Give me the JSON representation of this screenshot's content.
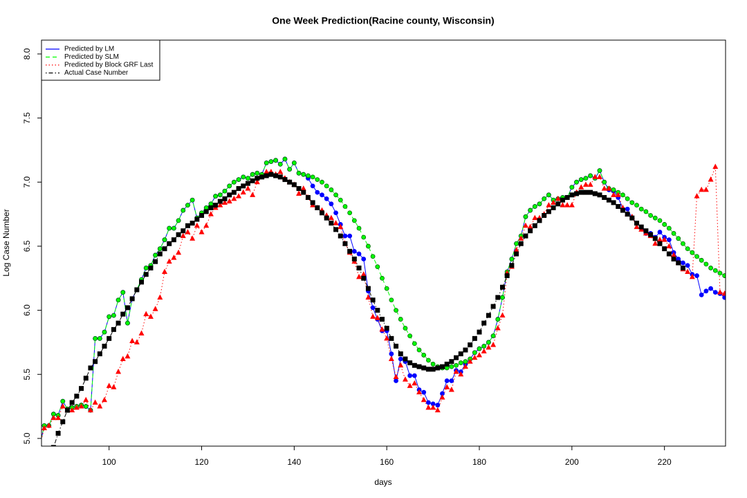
{
  "chart_data": {
    "type": "line",
    "title": "One Week Prediction(Racine county, Wisconsin)",
    "x_label": "days",
    "y_label": "Log Case Number",
    "xlim": [
      85.4,
      233.2
    ],
    "ylim": [
      4.94,
      8.108
    ],
    "xticks": [
      100,
      120,
      140,
      160,
      180,
      200,
      220
    ],
    "yticks": [
      {
        "value": 5,
        "label": "5.0"
      },
      {
        "value": 5.5,
        "label": "5.5"
      },
      {
        "value": 6,
        "label": "6.0"
      },
      {
        "value": 6.5,
        "label": "6.5"
      },
      {
        "value": 7,
        "label": "7.0"
      },
      {
        "value": 7.5,
        "label": "7.5"
      },
      {
        "value": 8,
        "label": "8.0"
      }
    ],
    "legend": "topleft",
    "x": [
      85,
      86,
      87,
      88,
      89,
      90,
      91,
      92,
      93,
      94,
      95,
      96,
      97,
      98,
      99,
      100,
      101,
      102,
      103,
      104,
      105,
      106,
      107,
      108,
      109,
      110,
      111,
      112,
      113,
      114,
      115,
      116,
      117,
      118,
      119,
      120,
      121,
      122,
      123,
      124,
      125,
      126,
      127,
      128,
      129,
      130,
      131,
      132,
      133,
      134,
      135,
      136,
      137,
      138,
      139,
      140,
      141,
      142,
      143,
      144,
      145,
      146,
      147,
      148,
      149,
      150,
      151,
      152,
      153,
      154,
      155,
      156,
      157,
      158,
      159,
      160,
      161,
      162,
      163,
      164,
      165,
      166,
      167,
      168,
      169,
      170,
      171,
      172,
      173,
      174,
      175,
      176,
      177,
      178,
      179,
      180,
      181,
      182,
      183,
      184,
      185,
      186,
      187,
      188,
      189,
      190,
      191,
      192,
      193,
      194,
      195,
      196,
      197,
      198,
      199,
      200,
      201,
      202,
      203,
      204,
      205,
      206,
      207,
      208,
      209,
      210,
      211,
      212,
      213,
      214,
      215,
      216,
      217,
      218,
      219,
      220,
      221,
      222,
      223,
      224,
      225,
      226,
      227,
      228,
      229,
      230,
      231,
      232,
      233
    ],
    "series": [
      {
        "name": "Predicted by LM",
        "color": "#0000ff",
        "dash": "solid",
        "marker": "circle",
        "values": [
          4.94,
          5.1,
          5.1,
          5.19,
          5.18,
          5.29,
          5.23,
          5.24,
          5.25,
          5.26,
          5.25,
          5.22,
          5.78,
          5.78,
          5.83,
          5.95,
          5.96,
          6.08,
          6.14,
          5.9,
          6.09,
          6.16,
          6.24,
          6.33,
          6.35,
          6.43,
          6.48,
          6.55,
          6.64,
          6.64,
          6.7,
          6.78,
          6.82,
          6.86,
          6.72,
          6.76,
          6.8,
          6.83,
          6.89,
          6.9,
          6.93,
          6.97,
          7.0,
          7.02,
          7.04,
          7.03,
          7.06,
          7.07,
          7.06,
          7.15,
          7.16,
          7.17,
          7.14,
          7.18,
          7.1,
          7.15,
          7.07,
          7.06,
          7.03,
          6.97,
          6.92,
          6.9,
          6.87,
          6.83,
          6.76,
          6.67,
          6.58,
          6.58,
          6.46,
          6.44,
          6.4,
          6.15,
          6.02,
          5.93,
          5.84,
          5.84,
          5.66,
          5.45,
          5.62,
          5.6,
          5.49,
          5.49,
          5.38,
          5.36,
          5.28,
          5.27,
          5.26,
          5.35,
          5.45,
          5.45,
          5.53,
          5.52,
          5.58,
          5.62,
          5.67,
          5.7,
          5.72,
          5.75,
          5.8,
          5.93,
          6.1,
          6.3,
          6.4,
          6.52,
          6.58,
          6.73,
          6.78,
          6.81,
          6.83,
          6.87,
          6.9,
          6.86,
          6.87,
          6.88,
          6.88,
          6.96,
          7.0,
          7.02,
          7.03,
          7.05,
          7.03,
          7.09,
          7.0,
          6.94,
          6.93,
          6.88,
          6.79,
          6.79,
          6.72,
          6.68,
          6.65,
          6.6,
          6.6,
          6.57,
          6.61,
          6.57,
          6.55,
          6.45,
          6.4,
          6.37,
          6.35,
          6.28,
          6.27,
          6.12,
          6.15,
          6.17,
          6.14,
          6.13,
          6.1
        ]
      },
      {
        "name": "Predicted by SLM",
        "color": "#00ff00",
        "dash": "dashed",
        "marker": "circle",
        "marker_edge": "#006400",
        "values": [
          4.94,
          5.1,
          5.1,
          5.19,
          5.18,
          5.29,
          5.23,
          5.24,
          5.25,
          5.26,
          5.25,
          5.22,
          5.78,
          5.78,
          5.83,
          5.95,
          5.96,
          6.08,
          6.14,
          5.9,
          6.09,
          6.16,
          6.24,
          6.33,
          6.35,
          6.43,
          6.48,
          6.55,
          6.64,
          6.64,
          6.7,
          6.78,
          6.82,
          6.86,
          6.72,
          6.76,
          6.8,
          6.83,
          6.89,
          6.9,
          6.93,
          6.97,
          7.0,
          7.02,
          7.04,
          7.03,
          7.06,
          7.07,
          7.06,
          7.15,
          7.16,
          7.17,
          7.14,
          7.18,
          7.1,
          7.15,
          7.07,
          7.06,
          7.05,
          7.04,
          7.02,
          7.0,
          6.97,
          6.94,
          6.9,
          6.86,
          6.81,
          6.76,
          6.7,
          6.64,
          6.57,
          6.5,
          6.42,
          6.34,
          6.25,
          6.17,
          6.08,
          6.0,
          5.93,
          5.86,
          5.8,
          5.74,
          5.69,
          5.65,
          5.61,
          5.58,
          5.56,
          5.55,
          5.55,
          5.56,
          5.57,
          5.59,
          5.6,
          5.62,
          5.67,
          5.7,
          5.72,
          5.75,
          5.8,
          5.93,
          6.1,
          6.3,
          6.4,
          6.52,
          6.58,
          6.73,
          6.78,
          6.81,
          6.83,
          6.87,
          6.9,
          6.86,
          6.87,
          6.88,
          6.88,
          6.96,
          7.0,
          7.02,
          7.03,
          7.05,
          7.03,
          7.09,
          7.0,
          6.95,
          6.94,
          6.92,
          6.9,
          6.87,
          6.84,
          6.82,
          6.79,
          6.77,
          6.74,
          6.72,
          6.7,
          6.67,
          6.64,
          6.6,
          6.56,
          6.52,
          6.48,
          6.45,
          6.42,
          6.39,
          6.36,
          6.33,
          6.31,
          6.29,
          6.27
        ]
      },
      {
        "name": "Predicted by Block GRF Last",
        "color": "#ff0000",
        "dash": "dotted",
        "marker": "triangle",
        "values": [
          4.94,
          5.08,
          5.1,
          5.16,
          5.16,
          5.25,
          5.22,
          5.22,
          5.24,
          5.25,
          5.3,
          5.22,
          5.28,
          5.25,
          5.3,
          5.41,
          5.4,
          5.52,
          5.62,
          5.64,
          5.76,
          5.75,
          5.82,
          5.97,
          5.95,
          6.01,
          6.1,
          6.3,
          6.38,
          6.41,
          6.45,
          6.58,
          6.61,
          6.56,
          6.66,
          6.61,
          6.66,
          6.75,
          6.8,
          6.82,
          6.84,
          6.85,
          6.87,
          6.89,
          6.92,
          6.95,
          6.9,
          7.0,
          7.04,
          7.08,
          7.08,
          7.06,
          7.08,
          7.03,
          7.0,
          6.98,
          6.91,
          6.95,
          6.88,
          6.82,
          6.8,
          6.78,
          6.74,
          6.72,
          6.68,
          6.65,
          6.52,
          6.45,
          6.38,
          6.26,
          6.28,
          6.1,
          5.95,
          5.94,
          5.85,
          5.78,
          5.62,
          5.48,
          5.57,
          5.46,
          5.41,
          5.43,
          5.36,
          5.3,
          5.24,
          5.24,
          5.22,
          5.32,
          5.4,
          5.38,
          5.52,
          5.5,
          5.56,
          5.6,
          5.63,
          5.65,
          5.68,
          5.71,
          5.73,
          5.86,
          5.96,
          6.29,
          6.34,
          6.47,
          6.56,
          6.66,
          6.65,
          6.72,
          6.72,
          6.75,
          6.82,
          6.84,
          6.87,
          6.82,
          6.82,
          6.82,
          6.92,
          6.96,
          6.98,
          6.98,
          7.04,
          7.04,
          6.95,
          6.95,
          6.9,
          6.9,
          6.8,
          6.75,
          6.73,
          6.65,
          6.63,
          6.6,
          6.58,
          6.52,
          6.55,
          6.55,
          6.5,
          6.43,
          6.37,
          6.32,
          6.3,
          6.26,
          6.89,
          6.94,
          6.94,
          7.02,
          7.12,
          6.14,
          6.13
        ]
      },
      {
        "name": "Actual Case Number",
        "color": "#000000",
        "dash": "dotdash",
        "marker": "square",
        "values": [
          4.85,
          4.88,
          4.9,
          4.93,
          5.04,
          5.13,
          5.22,
          5.28,
          5.33,
          5.39,
          5.47,
          5.55,
          5.6,
          5.66,
          5.72,
          5.78,
          5.85,
          5.9,
          5.97,
          6.02,
          6.09,
          6.16,
          6.22,
          6.28,
          6.33,
          6.38,
          6.44,
          6.48,
          6.52,
          6.55,
          6.59,
          6.62,
          6.66,
          6.68,
          6.71,
          6.74,
          6.77,
          6.8,
          6.82,
          6.85,
          6.87,
          6.9,
          6.92,
          6.95,
          6.97,
          6.99,
          7.01,
          7.03,
          7.04,
          7.05,
          7.06,
          7.05,
          7.04,
          7.02,
          7.0,
          6.98,
          6.95,
          6.92,
          6.88,
          6.84,
          6.8,
          6.76,
          6.72,
          6.68,
          6.63,
          6.58,
          6.52,
          6.46,
          6.4,
          6.33,
          6.25,
          6.17,
          6.08,
          6.0,
          5.93,
          5.86,
          5.78,
          5.72,
          5.66,
          5.62,
          5.59,
          5.57,
          5.56,
          5.55,
          5.54,
          5.54,
          5.55,
          5.56,
          5.58,
          5.6,
          5.63,
          5.66,
          5.69,
          5.73,
          5.78,
          5.83,
          5.9,
          5.96,
          6.03,
          6.1,
          6.18,
          6.27,
          6.35,
          6.44,
          6.52,
          6.58,
          6.62,
          6.66,
          6.7,
          6.74,
          6.77,
          6.8,
          6.83,
          6.86,
          6.88,
          6.9,
          6.91,
          6.92,
          6.92,
          6.92,
          6.91,
          6.9,
          6.88,
          6.86,
          6.84,
          6.81,
          6.78,
          6.75,
          6.72,
          6.68,
          6.65,
          6.62,
          6.59,
          6.56,
          6.52,
          6.48,
          6.44,
          6.4,
          6.37,
          6.33,
          null,
          null,
          null,
          null,
          null,
          null,
          null,
          null,
          null
        ]
      }
    ]
  }
}
